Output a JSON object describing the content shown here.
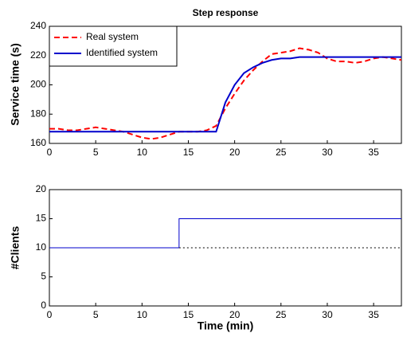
{
  "chart_data": [
    {
      "type": "line",
      "title": "Step response",
      "y_label": "Service time (s)",
      "x": [
        0,
        1,
        2,
        3,
        4,
        5,
        6,
        7,
        8,
        9,
        10,
        11,
        12,
        13,
        14,
        15,
        16,
        17,
        18,
        19,
        20,
        21,
        22,
        23,
        24,
        25,
        26,
        27,
        28,
        29,
        30,
        31,
        32,
        33,
        34,
        35,
        36,
        37,
        38
      ],
      "series": [
        {
          "name": "Real system",
          "color": "#ff0000",
          "style": "dashed",
          "values": [
            170,
            170,
            169,
            169,
            170,
            171,
            170,
            169,
            168,
            166,
            164,
            163,
            164,
            166,
            168,
            168,
            168,
            169,
            172,
            184,
            194,
            203,
            210,
            216,
            221,
            222,
            223,
            225,
            224,
            222,
            218,
            216,
            216,
            215,
            216,
            218,
            219,
            218,
            217
          ]
        },
        {
          "name": "Identified system",
          "color": "#0000cc",
          "style": "solid",
          "values": [
            168,
            168,
            168,
            168,
            168,
            168,
            168,
            168,
            168,
            168,
            168,
            168,
            168,
            168,
            168,
            168,
            168,
            168,
            168,
            188,
            200,
            208,
            212,
            215,
            217,
            218,
            218,
            219,
            219,
            219,
            219,
            219,
            219,
            219,
            219,
            219,
            219,
            219,
            219
          ]
        }
      ],
      "xlim": [
        0,
        38
      ],
      "xticks": [
        0,
        5,
        10,
        15,
        20,
        25,
        30,
        35
      ],
      "ylim": [
        160,
        240
      ],
      "yticks": [
        160,
        180,
        200,
        220,
        240
      ],
      "legend": "top-left"
    },
    {
      "type": "line",
      "x_label": "Time (min)",
      "y_label": "#Clients",
      "x": [
        0,
        14,
        14,
        38
      ],
      "series": [
        {
          "color": "#0000cc",
          "style": "solid",
          "values": [
            10,
            10,
            15,
            15
          ]
        },
        {
          "color": "#000000",
          "style": "dotted",
          "values": [
            null,
            10,
            10,
            10
          ]
        }
      ],
      "xlim": [
        0,
        38
      ],
      "xticks": [
        0,
        5,
        10,
        15,
        20,
        25,
        30,
        35
      ],
      "ylim": [
        0,
        20
      ],
      "yticks": [
        0,
        5,
        10,
        15,
        20
      ]
    }
  ]
}
